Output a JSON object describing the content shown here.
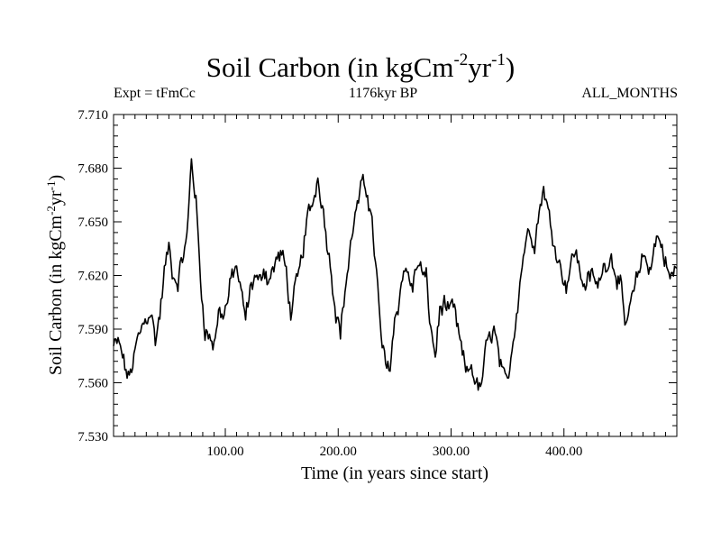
{
  "header": {
    "title_main": "Soil Carbon (in kgCm",
    "title_exp1": "-2",
    "title_mid": "yr",
    "title_exp2": "-1",
    "title_end": ")",
    "expt": "Expt = tFmCc",
    "period": "1176kyr BP",
    "months": "ALL_MONTHS"
  },
  "chart_data": {
    "type": "line",
    "title": "Soil Carbon (in kgCm-2yr-1)",
    "xlabel": "Time (in years since start)",
    "ylabel": "Soil Carbon (in kgCm-2yr-1)",
    "ylabel_parts": {
      "main": "Soil Carbon (in kgCm",
      "exp1": "-2",
      "mid": "yr",
      "exp2": "-1",
      "end": ")"
    },
    "xlim": [
      1,
      500
    ],
    "ylim": [
      7.53,
      7.71
    ],
    "xticks": [
      100,
      200,
      300,
      400
    ],
    "xtick_labels": [
      "100.00",
      "200.00",
      "300.00",
      "400.00"
    ],
    "yticks": [
      7.53,
      7.56,
      7.59,
      7.62,
      7.65,
      7.68,
      7.71
    ],
    "ytick_labels": [
      "7.530",
      "7.560",
      "7.590",
      "7.620",
      "7.650",
      "7.680",
      "7.710"
    ],
    "series": [
      {
        "name": "Soil Carbon",
        "step": 1,
        "anchors": [
          [
            1,
            7.58
          ],
          [
            5,
            7.583
          ],
          [
            10,
            7.572
          ],
          [
            14,
            7.562
          ],
          [
            18,
            7.57
          ],
          [
            22,
            7.583
          ],
          [
            26,
            7.59
          ],
          [
            30,
            7.596
          ],
          [
            34,
            7.6
          ],
          [
            38,
            7.584
          ],
          [
            42,
            7.598
          ],
          [
            46,
            7.622
          ],
          [
            50,
            7.636
          ],
          [
            54,
            7.62
          ],
          [
            58,
            7.617
          ],
          [
            62,
            7.63
          ],
          [
            66,
            7.64
          ],
          [
            70,
            7.685
          ],
          [
            74,
            7.662
          ],
          [
            78,
            7.618
          ],
          [
            82,
            7.59
          ],
          [
            86,
            7.585
          ],
          [
            90,
            7.582
          ],
          [
            94,
            7.6
          ],
          [
            98,
            7.598
          ],
          [
            102,
            7.605
          ],
          [
            106,
            7.62
          ],
          [
            110,
            7.625
          ],
          [
            114,
            7.61
          ],
          [
            118,
            7.596
          ],
          [
            122,
            7.612
          ],
          [
            126,
            7.62
          ],
          [
            130,
            7.615
          ],
          [
            134,
            7.625
          ],
          [
            138,
            7.618
          ],
          [
            142,
            7.622
          ],
          [
            146,
            7.63
          ],
          [
            150,
            7.632
          ],
          [
            154,
            7.622
          ],
          [
            158,
            7.598
          ],
          [
            162,
            7.612
          ],
          [
            166,
            7.622
          ],
          [
            170,
            7.64
          ],
          [
            174,
            7.655
          ],
          [
            178,
            7.662
          ],
          [
            182,
            7.675
          ],
          [
            186,
            7.66
          ],
          [
            190,
            7.64
          ],
          [
            194,
            7.622
          ],
          [
            198,
            7.6
          ],
          [
            202,
            7.588
          ],
          [
            206,
            7.612
          ],
          [
            210,
            7.63
          ],
          [
            214,
            7.652
          ],
          [
            218,
            7.66
          ],
          [
            222,
            7.672
          ],
          [
            226,
            7.668
          ],
          [
            230,
            7.648
          ],
          [
            234,
            7.62
          ],
          [
            238,
            7.585
          ],
          [
            242,
            7.568
          ],
          [
            246,
            7.57
          ],
          [
            250,
            7.595
          ],
          [
            254,
            7.606
          ],
          [
            258,
            7.625
          ],
          [
            262,
            7.62
          ],
          [
            266,
            7.612
          ],
          [
            270,
            7.628
          ],
          [
            274,
            7.622
          ],
          [
            278,
            7.618
          ],
          [
            282,
            7.59
          ],
          [
            286,
            7.575
          ],
          [
            290,
            7.6
          ],
          [
            294,
            7.605
          ],
          [
            298,
            7.598
          ],
          [
            302,
            7.602
          ],
          [
            306,
            7.59
          ],
          [
            310,
            7.575
          ],
          [
            314,
            7.565
          ],
          [
            318,
            7.57
          ],
          [
            322,
            7.56
          ],
          [
            326,
            7.555
          ],
          [
            330,
            7.575
          ],
          [
            334,
            7.585
          ],
          [
            338,
            7.59
          ],
          [
            342,
            7.575
          ],
          [
            346,
            7.562
          ],
          [
            350,
            7.56
          ],
          [
            354,
            7.58
          ],
          [
            358,
            7.6
          ],
          [
            362,
            7.622
          ],
          [
            366,
            7.64
          ],
          [
            370,
            7.645
          ],
          [
            374,
            7.64
          ],
          [
            378,
            7.655
          ],
          [
            382,
            7.67
          ],
          [
            386,
            7.655
          ],
          [
            390,
            7.642
          ],
          [
            394,
            7.632
          ],
          [
            398,
            7.622
          ],
          [
            402,
            7.615
          ],
          [
            406,
            7.625
          ],
          [
            410,
            7.635
          ],
          [
            414,
            7.622
          ],
          [
            418,
            7.615
          ],
          [
            422,
            7.618
          ],
          [
            426,
            7.62
          ],
          [
            430,
            7.612
          ],
          [
            434,
            7.625
          ],
          [
            438,
            7.628
          ],
          [
            442,
            7.63
          ],
          [
            446,
            7.622
          ],
          [
            450,
            7.615
          ],
          [
            454,
            7.59
          ],
          [
            458,
            7.6
          ],
          [
            462,
            7.61
          ],
          [
            466,
            7.622
          ],
          [
            470,
            7.632
          ],
          [
            474,
            7.625
          ],
          [
            478,
            7.628
          ],
          [
            482,
            7.642
          ],
          [
            486,
            7.638
          ],
          [
            490,
            7.628
          ],
          [
            494,
            7.618
          ],
          [
            498,
            7.622
          ],
          [
            500,
            7.625
          ]
        ]
      }
    ]
  }
}
